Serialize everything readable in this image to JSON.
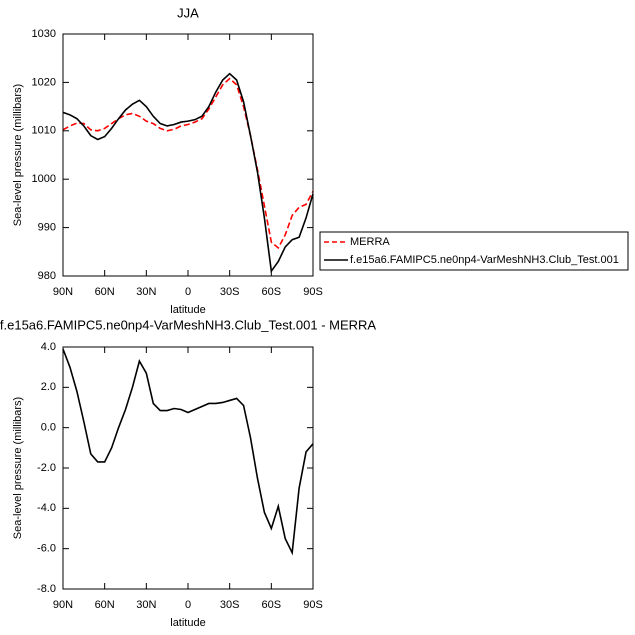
{
  "chart_data": [
    {
      "type": "line",
      "title": "JJA",
      "xlabel": "latitude",
      "ylabel": "Sea-level pressure (millibars)",
      "x": [
        90,
        85,
        80,
        75,
        70,
        65,
        60,
        55,
        50,
        45,
        40,
        35,
        30,
        25,
        20,
        15,
        10,
        5,
        0,
        -5,
        -10,
        -15,
        -20,
        -25,
        -30,
        -35,
        -40,
        -45,
        -50,
        -55,
        -60,
        -65,
        -70,
        -75,
        -80,
        -85,
        -90
      ],
      "xlim": [
        90,
        -90
      ],
      "xticks": [
        {
          "value": 90,
          "label": "90N"
        },
        {
          "value": 60,
          "label": "60N"
        },
        {
          "value": 30,
          "label": "30N"
        },
        0,
        {
          "value": -30,
          "label": "30S"
        },
        {
          "value": -60,
          "label": "60S"
        },
        {
          "value": -90,
          "label": "90S"
        }
      ],
      "ylim": [
        980,
        1030
      ],
      "yticks": [
        980,
        990,
        1000,
        1010,
        1020,
        1030
      ],
      "legend": "outside-right",
      "series": [
        {
          "name": "MERRA",
          "color": "#ff0000",
          "line_style": "dashed",
          "values": [
            1010.2,
            1011,
            1011.6,
            1011.5,
            1010.2,
            1010,
            1010.5,
            1011.5,
            1012.5,
            1013.3,
            1013.6,
            1013,
            1012,
            1011.5,
            1010.5,
            1010,
            1010.3,
            1011,
            1011.3,
            1011.8,
            1012.5,
            1014.5,
            1017,
            1019.5,
            1020.8,
            1019.5,
            1015,
            1009,
            1002,
            994.5,
            987,
            985.8,
            988.5,
            992.5,
            994.2,
            994.8,
            997.5
          ]
        },
        {
          "name": "f.e15a6.FAMIPC5.ne0np4-VarMeshNH3.Club_Test.001",
          "color": "#000000",
          "line_style": "solid",
          "values": [
            1013.8,
            1013.3,
            1012.5,
            1011,
            1009,
            1008.2,
            1008.8,
            1010.5,
            1012.5,
            1014.3,
            1015.5,
            1016.3,
            1015,
            1013,
            1011.5,
            1011,
            1011.3,
            1011.8,
            1012,
            1012.3,
            1013,
            1015,
            1018,
            1020.5,
            1021.8,
            1020.5,
            1016,
            1009,
            1001.5,
            992,
            981,
            983,
            986,
            987.5,
            988,
            992,
            997
          ]
        }
      ]
    },
    {
      "type": "line",
      "title": "f.e15a6.FAMIPC5.ne0np4-VarMeshNH3.Club_Test.001 - MERRA",
      "xlabel": "latitude",
      "ylabel": "Sea-level pressure (millibars)",
      "x": [
        90,
        85,
        80,
        75,
        70,
        65,
        60,
        55,
        50,
        45,
        40,
        35,
        30,
        25,
        20,
        15,
        10,
        5,
        0,
        -5,
        -10,
        -15,
        -20,
        -25,
        -30,
        -35,
        -40,
        -45,
        -50,
        -55,
        -60,
        -65,
        -70,
        -75,
        -80,
        -85,
        -90
      ],
      "xlim": [
        90,
        -90
      ],
      "xticks": [
        {
          "value": 90,
          "label": "90N"
        },
        {
          "value": 60,
          "label": "60N"
        },
        {
          "value": 30,
          "label": "30N"
        },
        0,
        {
          "value": -30,
          "label": "30S"
        },
        {
          "value": -60,
          "label": "60S"
        },
        {
          "value": -90,
          "label": "90S"
        }
      ],
      "ylim": [
        -8,
        4
      ],
      "yticks": [
        {
          "value": -8,
          "label": "-8.0"
        },
        {
          "value": -6,
          "label": "-6.0"
        },
        {
          "value": -4,
          "label": "-4.0"
        },
        {
          "value": -2,
          "label": "-2.0"
        },
        {
          "value": 0,
          "label": "0.0"
        },
        {
          "value": 2,
          "label": "2.0"
        },
        {
          "value": 4,
          "label": "4.0"
        }
      ],
      "series": [
        {
          "color": "#000000",
          "line_style": "solid",
          "values": [
            3.9,
            3.0,
            1.8,
            0.3,
            -1.3,
            -1.7,
            -1.7,
            -1.0,
            0.0,
            0.9,
            2.0,
            3.3,
            2.7,
            1.2,
            0.85,
            0.85,
            0.95,
            0.9,
            0.75,
            0.9,
            1.05,
            1.2,
            1.2,
            1.25,
            1.35,
            1.45,
            1.1,
            -0.5,
            -2.5,
            -4.2,
            -5.0,
            -3.9,
            -5.5,
            -6.2,
            -3.0,
            -1.2,
            -0.8
          ]
        }
      ]
    }
  ]
}
